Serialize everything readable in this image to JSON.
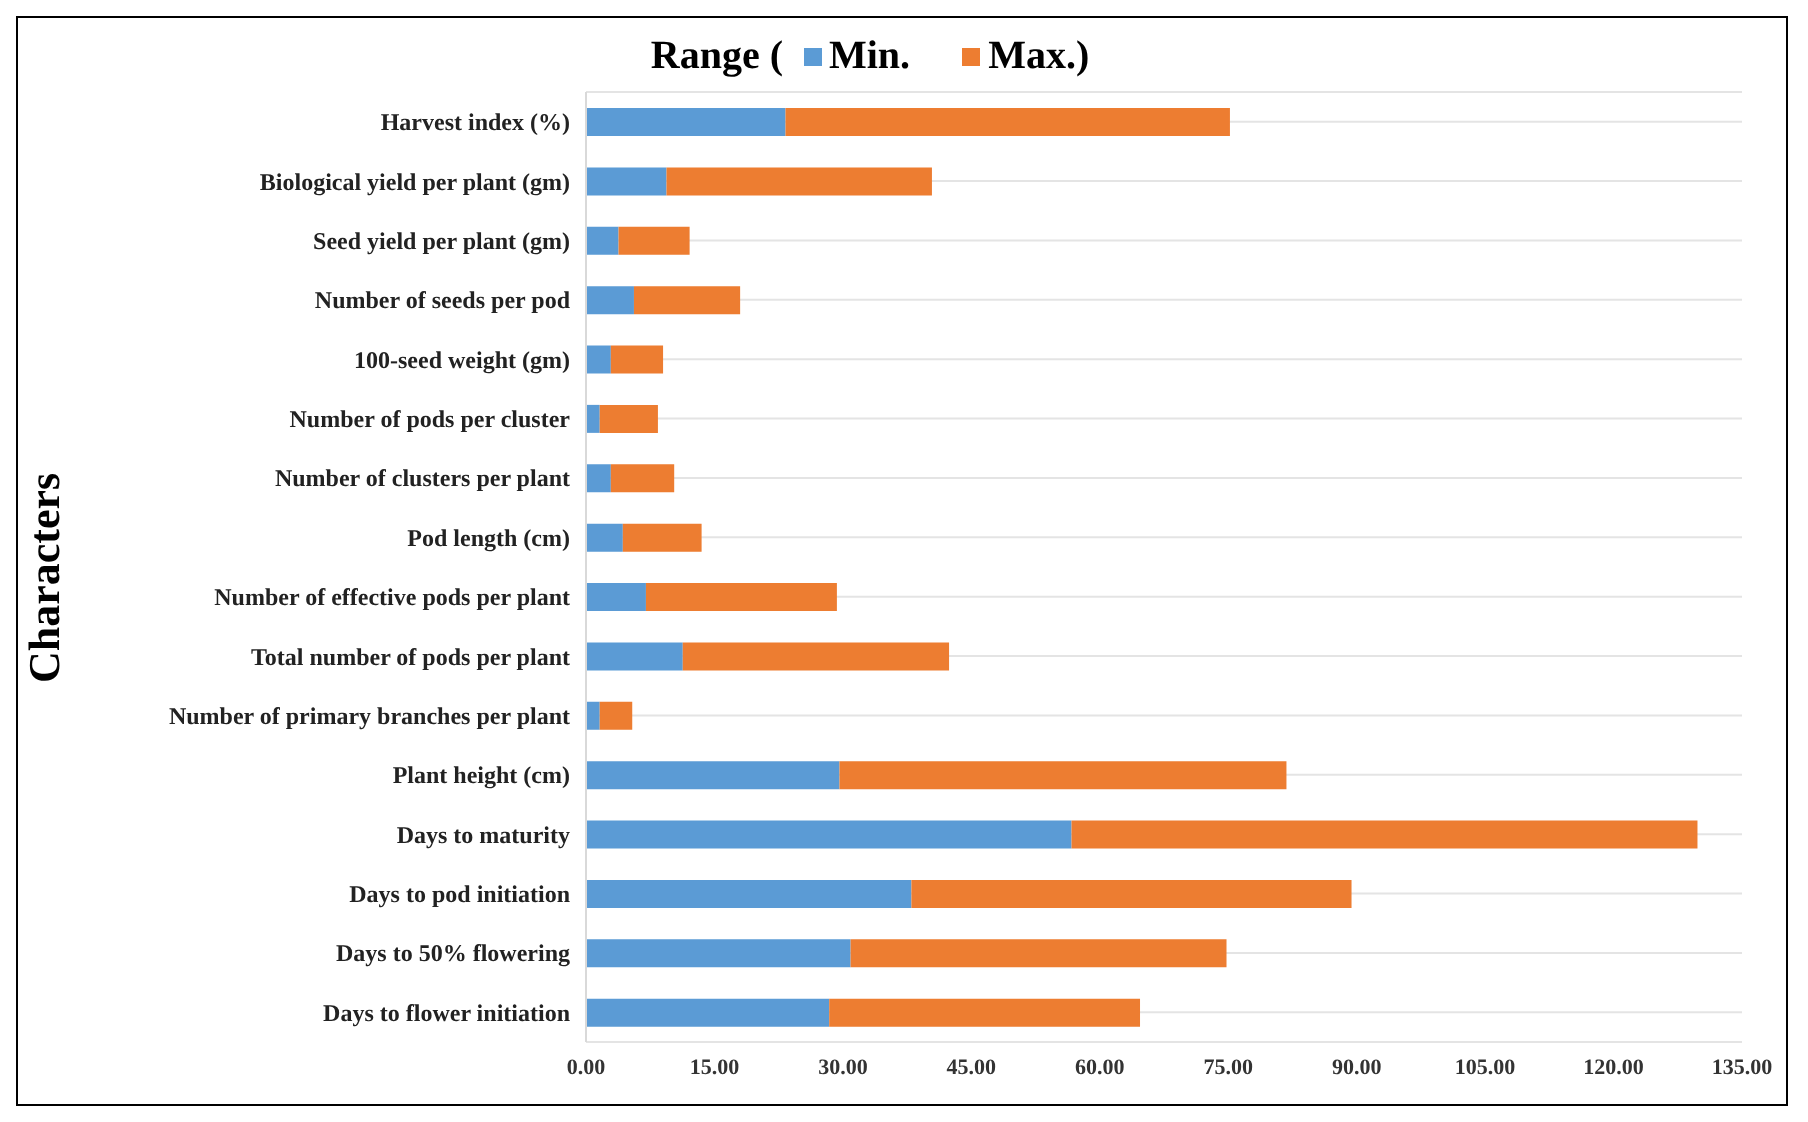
{
  "chart_data": {
    "type": "bar",
    "orientation": "horizontal",
    "stacked": true,
    "title": "Range (",
    "ylabel": "Characters",
    "categories": [
      "Harvest index (%)",
      "Biological yield per plant (gm)",
      "Seed yield per plant (gm)",
      "Number of seeds per pod",
      "100-seed weight (gm)",
      "Number of pods per cluster",
      "Number of clusters per plant",
      "Pod length (cm)",
      "Number of effective pods per plant",
      "Total number of pods per plant",
      "Number of primary branches per plant",
      "Plant height (cm)",
      "Days to maturity",
      "Days to pod initiation",
      "Days to 50% flowering",
      "Days to flower initiation"
    ],
    "series": [
      {
        "name": "Min.",
        "color": "#5b9bd5",
        "values": [
          23.3,
          9.4,
          3.8,
          5.6,
          2.9,
          1.6,
          2.9,
          4.3,
          7.0,
          11.3,
          1.6,
          29.6,
          56.7,
          38.0,
          30.9,
          28.4
        ]
      },
      {
        "name": "Max.)",
        "color": "#ed7d31",
        "values": [
          51.9,
          31.0,
          8.3,
          12.4,
          6.1,
          6.8,
          7.4,
          9.2,
          22.3,
          31.1,
          3.8,
          52.2,
          73.1,
          51.4,
          43.9,
          36.3
        ]
      }
    ],
    "xlim": [
      0,
      135
    ],
    "xticks": [
      {
        "value": 0,
        "label": "0.00"
      },
      {
        "value": 15,
        "label": "15.00"
      },
      {
        "value": 30,
        "label": "30.00"
      },
      {
        "value": 45,
        "label": "45.00"
      },
      {
        "value": 60,
        "label": "60.00"
      },
      {
        "value": 75,
        "label": "75.00"
      },
      {
        "value": 90,
        "label": "90.00"
      },
      {
        "value": 105,
        "label": "105.00"
      },
      {
        "value": 120,
        "label": "120.00"
      },
      {
        "value": 135,
        "label": "135.00"
      }
    ],
    "grid": "y",
    "legend": "top"
  }
}
